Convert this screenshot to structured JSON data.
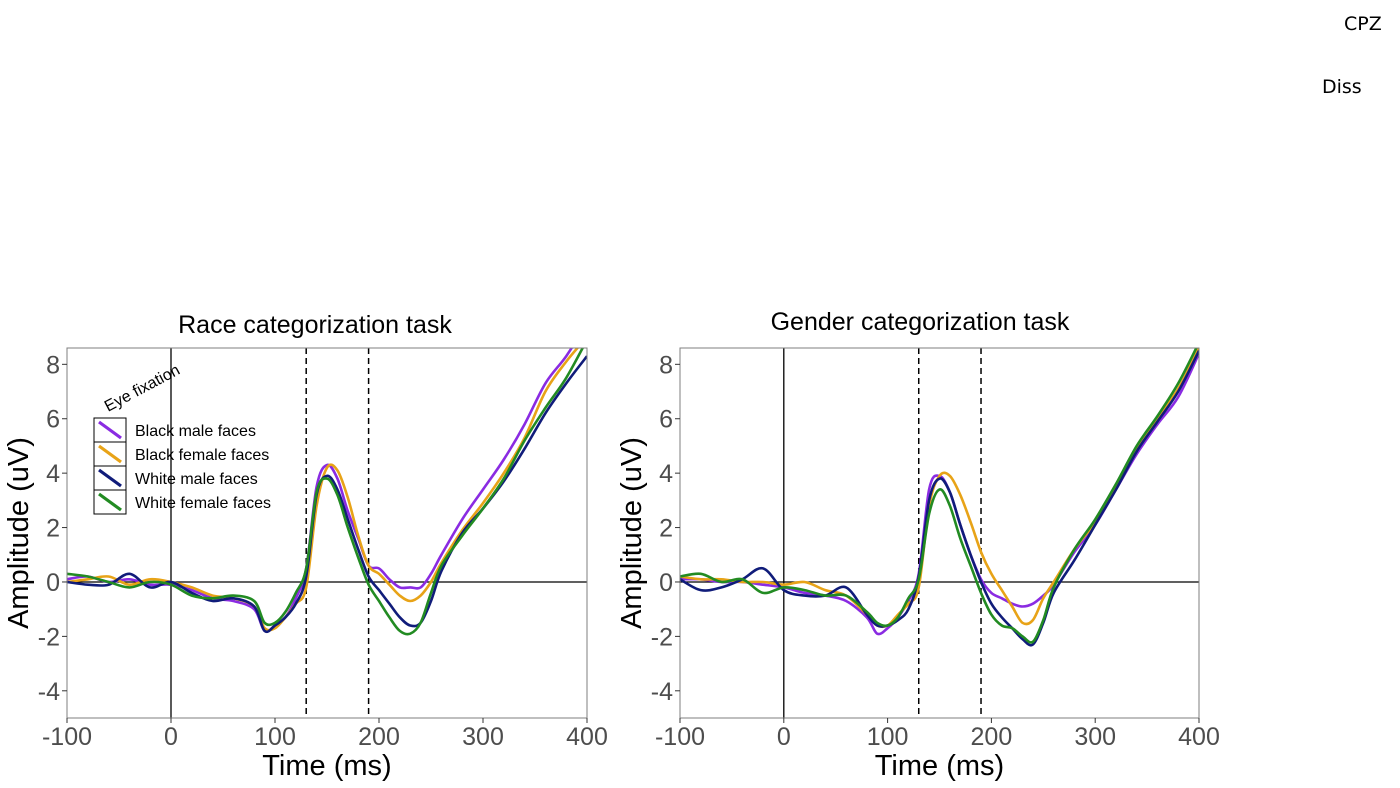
{
  "corner_labels": {
    "top": "CPZ",
    "second": "Diss"
  },
  "chart_data": [
    {
      "type": "line",
      "title": "Race categorization task",
      "xlabel": "Time (ms)",
      "ylabel": "Amplitude (uV)",
      "xlim": [
        -100,
        400
      ],
      "ylim": [
        -5,
        8.6
      ],
      "xticks": [
        -100,
        0,
        100,
        200,
        300,
        400
      ],
      "xtick_labels": [
        "-100",
        "0",
        "100",
        "200",
        "300",
        "400"
      ],
      "yticks": [
        -4,
        -2,
        0,
        2,
        4,
        6,
        8
      ],
      "ytick_labels": [
        "-4",
        "-2",
        "0",
        "2",
        "4",
        "6",
        "8"
      ],
      "vlines_dashed": [
        130,
        190
      ],
      "vline_solid": 0,
      "hline": 0,
      "grid": false,
      "annotation": "Eye fixation",
      "legend_position": "upper-left",
      "x": [
        -100,
        -80,
        -60,
        -40,
        -20,
        0,
        20,
        40,
        60,
        80,
        90,
        100,
        110,
        120,
        130,
        140,
        150,
        160,
        170,
        180,
        190,
        200,
        210,
        220,
        230,
        240,
        250,
        260,
        280,
        300,
        320,
        340,
        360,
        380,
        400
      ],
      "series": [
        {
          "name": "Black male faces",
          "color": "#8a2be2",
          "values": [
            0.1,
            0.2,
            0.0,
            0.1,
            -0.1,
            -0.1,
            -0.3,
            -0.6,
            -0.7,
            -1.0,
            -1.8,
            -1.6,
            -1.3,
            -0.6,
            0.5,
            3.5,
            4.3,
            3.8,
            2.6,
            1.6,
            0.6,
            0.5,
            0.1,
            -0.2,
            -0.2,
            -0.2,
            0.3,
            1.0,
            2.3,
            3.4,
            4.5,
            5.8,
            7.3,
            8.3,
            9.5
          ]
        },
        {
          "name": "Black female faces",
          "color": "#e8a317",
          "values": [
            0.0,
            0.1,
            0.2,
            -0.1,
            0.1,
            0.0,
            -0.2,
            -0.5,
            -0.6,
            -0.9,
            -1.7,
            -1.7,
            -1.3,
            -0.8,
            -0.2,
            2.8,
            4.2,
            4.1,
            3.1,
            1.7,
            0.6,
            0.3,
            -0.1,
            -0.5,
            -0.7,
            -0.5,
            0.0,
            0.7,
            1.9,
            2.9,
            4.0,
            5.3,
            7.0,
            8.1,
            9.0
          ]
        },
        {
          "name": "White male faces",
          "color": "#101c7a",
          "values": [
            0.0,
            -0.1,
            -0.1,
            0.3,
            -0.2,
            0.0,
            -0.4,
            -0.7,
            -0.6,
            -0.9,
            -1.8,
            -1.6,
            -1.3,
            -0.8,
            0.2,
            3.2,
            3.9,
            3.4,
            2.3,
            1.2,
            0.2,
            -0.3,
            -0.8,
            -1.3,
            -1.6,
            -1.5,
            -0.7,
            0.4,
            1.8,
            2.7,
            3.7,
            4.9,
            6.2,
            7.3,
            8.3
          ]
        },
        {
          "name": "White female faces",
          "color": "#228b22",
          "values": [
            0.3,
            0.2,
            0.0,
            -0.2,
            0.0,
            -0.1,
            -0.5,
            -0.6,
            -0.5,
            -0.7,
            -1.5,
            -1.5,
            -1.1,
            -0.4,
            0.5,
            3.3,
            3.8,
            3.2,
            2.0,
            0.9,
            -0.1,
            -0.7,
            -1.3,
            -1.8,
            -1.9,
            -1.5,
            -0.4,
            0.6,
            1.7,
            2.7,
            3.8,
            5.2,
            6.4,
            7.5,
            8.9
          ]
        }
      ]
    },
    {
      "type": "line",
      "title": "Gender categorization task",
      "xlabel": "Time (ms)",
      "ylabel": "Amplitude (uV)",
      "xlim": [
        -100,
        400
      ],
      "ylim": [
        -5,
        8.6
      ],
      "xticks": [
        -100,
        0,
        100,
        200,
        300,
        400
      ],
      "xtick_labels": [
        "-100",
        "0",
        "100",
        "200",
        "300",
        "400"
      ],
      "yticks": [
        -4,
        -2,
        0,
        2,
        4,
        6,
        8
      ],
      "ytick_labels": [
        "-4",
        "-2",
        "0",
        "2",
        "4",
        "6",
        "8"
      ],
      "vlines_dashed": [
        130,
        190
      ],
      "vline_solid": 0,
      "hline": 0,
      "grid": false,
      "x": [
        -100,
        -80,
        -60,
        -40,
        -20,
        0,
        20,
        40,
        60,
        80,
        90,
        100,
        110,
        120,
        130,
        140,
        150,
        160,
        170,
        180,
        190,
        200,
        210,
        220,
        230,
        240,
        250,
        260,
        280,
        300,
        320,
        340,
        360,
        380,
        400
      ],
      "series": [
        {
          "name": "Black male faces",
          "color": "#8a2be2",
          "values": [
            0.1,
            0.1,
            0.0,
            0.0,
            -0.1,
            -0.2,
            -0.4,
            -0.5,
            -0.7,
            -1.3,
            -1.9,
            -1.7,
            -1.3,
            -0.7,
            0.3,
            3.4,
            3.9,
            3.3,
            2.1,
            1.0,
            0.1,
            -0.4,
            -0.6,
            -0.8,
            -0.9,
            -0.8,
            -0.5,
            -0.1,
            1.1,
            2.1,
            3.4,
            4.7,
            5.8,
            6.8,
            8.4
          ]
        },
        {
          "name": "Black female faces",
          "color": "#e8a317",
          "values": [
            0.2,
            0.1,
            0.1,
            0.0,
            0.0,
            -0.1,
            0.0,
            -0.3,
            -0.5,
            -1.2,
            -1.6,
            -1.6,
            -1.2,
            -0.8,
            -0.2,
            2.8,
            3.9,
            3.9,
            3.2,
            2.2,
            1.1,
            0.3,
            -0.3,
            -0.9,
            -1.5,
            -1.4,
            -0.6,
            0.0,
            1.2,
            2.2,
            3.5,
            4.9,
            6.0,
            7.1,
            8.6
          ]
        },
        {
          "name": "White male faces",
          "color": "#101c7a",
          "values": [
            0.1,
            -0.3,
            -0.2,
            0.1,
            0.5,
            -0.3,
            -0.5,
            -0.5,
            -0.2,
            -1.2,
            -1.6,
            -1.6,
            -1.4,
            -1.0,
            0.2,
            3.0,
            3.8,
            3.3,
            2.1,
            1.0,
            0.0,
            -0.8,
            -1.3,
            -1.7,
            -2.1,
            -2.3,
            -1.5,
            -0.4,
            0.8,
            2.1,
            3.4,
            4.8,
            5.9,
            7.0,
            8.5
          ]
        },
        {
          "name": "White female faces",
          "color": "#228b22",
          "values": [
            0.2,
            0.3,
            0.0,
            0.1,
            -0.4,
            -0.2,
            -0.3,
            -0.5,
            -0.5,
            -1.1,
            -1.5,
            -1.6,
            -1.3,
            -0.6,
            0.1,
            2.5,
            3.4,
            2.8,
            1.6,
            0.6,
            -0.4,
            -1.2,
            -1.6,
            -1.7,
            -2.0,
            -2.2,
            -1.4,
            -0.2,
            1.2,
            2.3,
            3.6,
            5.0,
            6.1,
            7.3,
            8.8
          ]
        }
      ]
    }
  ]
}
